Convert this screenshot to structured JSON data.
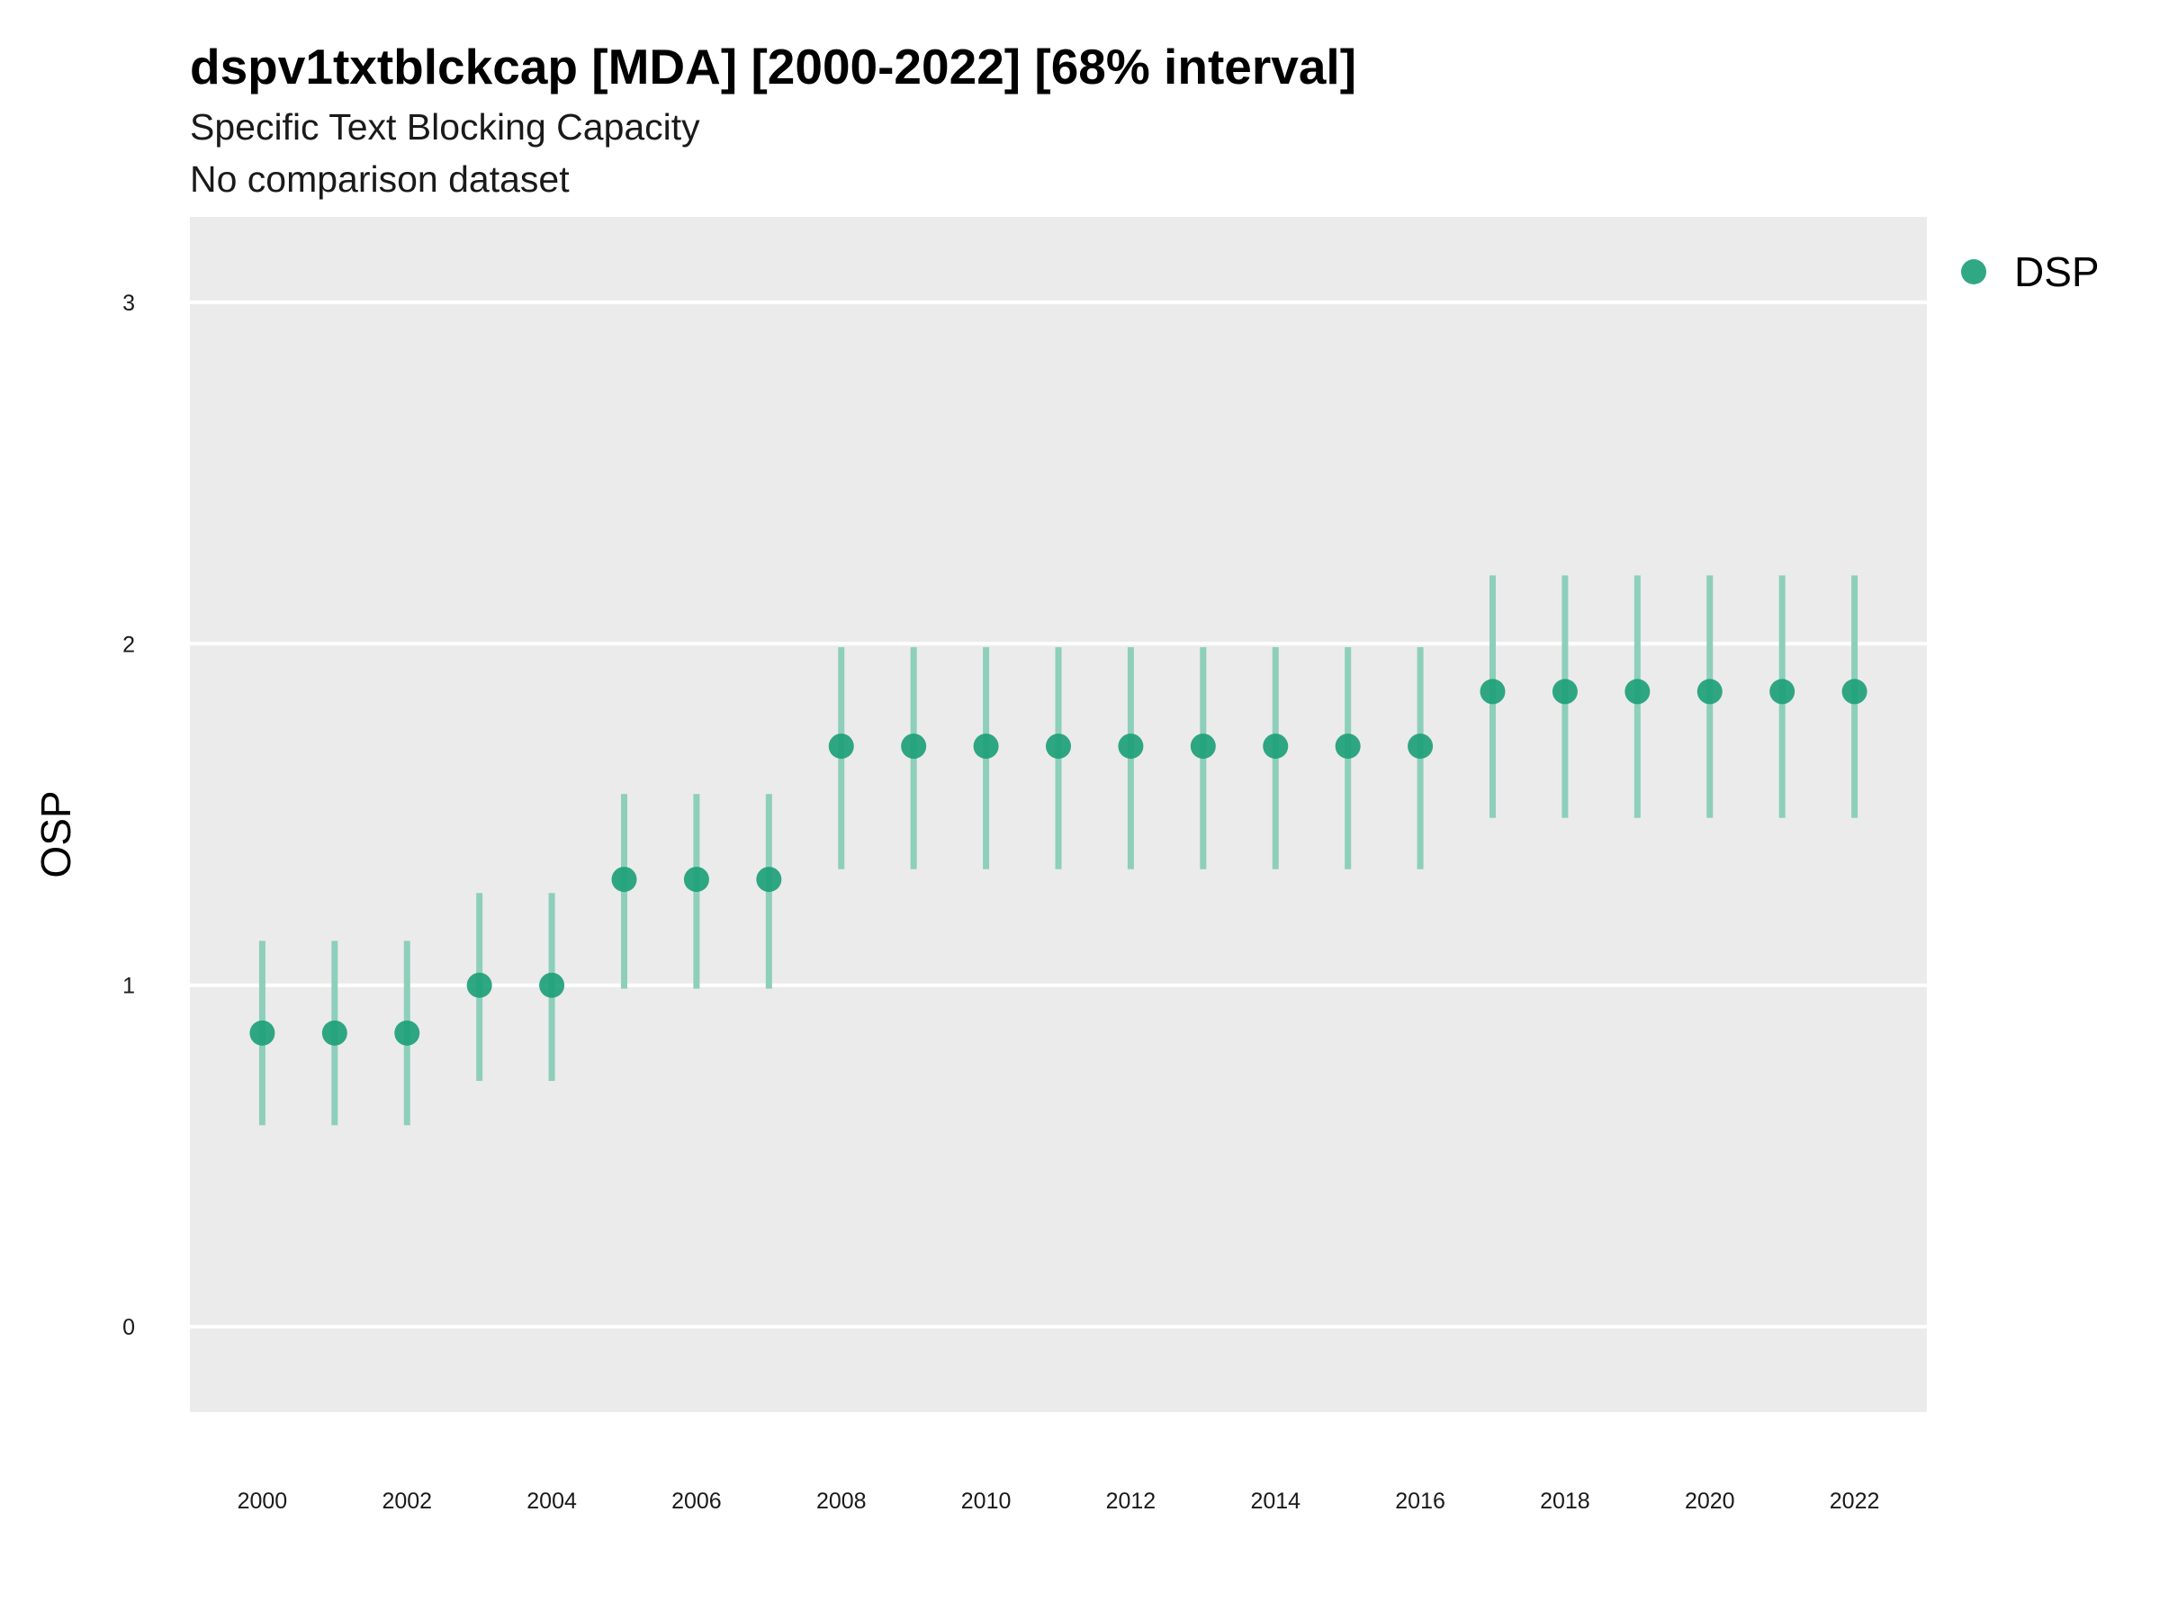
{
  "chart_data": {
    "type": "scatter",
    "title": "dspv1txtblckcap [MDA] [2000-2022] [68% interval]",
    "subtitle": "Specific Text Blocking Capacity",
    "subtitle2": "No comparison dataset",
    "xlabel": "",
    "ylabel": "OSP",
    "xlim": [
      1999,
      2023
    ],
    "ylim": [
      -0.25,
      3.25
    ],
    "x_ticks": [
      2000,
      2002,
      2004,
      2006,
      2008,
      2010,
      2012,
      2014,
      2016,
      2018,
      2020,
      2022
    ],
    "y_ticks": [
      0,
      1,
      2,
      3
    ],
    "grid": true,
    "legend_position": "right",
    "colors": {
      "point": "#1b9e77",
      "interval": "#8dcfba",
      "panel": "#ebebeb",
      "grid": "#ffffff"
    },
    "series": [
      {
        "name": "DSP",
        "x": [
          2000,
          2001,
          2002,
          2003,
          2004,
          2005,
          2006,
          2007,
          2008,
          2009,
          2010,
          2011,
          2012,
          2013,
          2014,
          2015,
          2016,
          2017,
          2018,
          2019,
          2020,
          2021,
          2022
        ],
        "y": [
          0.86,
          0.86,
          0.86,
          1.0,
          1.0,
          1.31,
          1.31,
          1.31,
          1.7,
          1.7,
          1.7,
          1.7,
          1.7,
          1.7,
          1.7,
          1.7,
          1.7,
          1.86,
          1.86,
          1.86,
          1.86,
          1.86,
          1.86
        ],
        "lower": [
          0.59,
          0.59,
          0.59,
          0.72,
          0.72,
          0.99,
          0.99,
          0.99,
          1.34,
          1.34,
          1.34,
          1.34,
          1.34,
          1.34,
          1.34,
          1.34,
          1.34,
          1.49,
          1.49,
          1.49,
          1.49,
          1.49,
          1.49
        ],
        "upper": [
          1.13,
          1.13,
          1.13,
          1.27,
          1.27,
          1.56,
          1.56,
          1.56,
          1.99,
          1.99,
          1.99,
          1.99,
          1.99,
          1.99,
          1.99,
          1.99,
          1.99,
          2.2,
          2.2,
          2.2,
          2.2,
          2.2,
          2.2
        ]
      }
    ]
  }
}
